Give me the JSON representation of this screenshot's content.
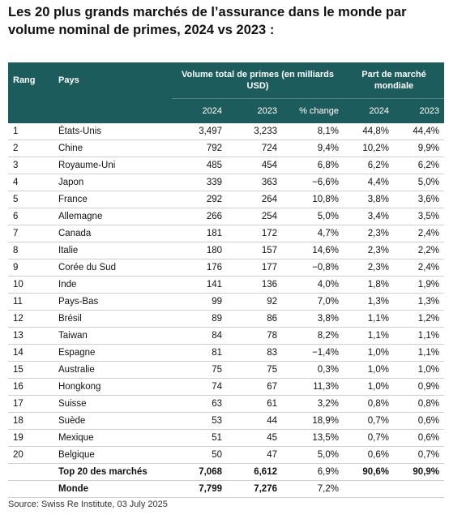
{
  "title": "Les 20 plus grands marchés de l’assurance dans le monde par volume nominal de primes, 2024 vs 2023 :",
  "table": {
    "header": {
      "rank": "Rang",
      "country": "Pays",
      "volume": "Volume total de primes (en milliards USD)",
      "share": "Part de marché mondiale",
      "columns": [
        "2024",
        "2023",
        "% change",
        "2024",
        "2023"
      ]
    },
    "rows": [
      [
        "1",
        "États-Unis",
        "3,497",
        "3,233",
        "8,1%",
        "44,8%",
        "44,4%"
      ],
      [
        "2",
        "Chine",
        "792",
        "724",
        "9,4%",
        "10,2%",
        "9,9%"
      ],
      [
        "3",
        "Royaume-Uni",
        "485",
        "454",
        "6,8%",
        "6,2%",
        "6,2%"
      ],
      [
        "4",
        "Japon",
        "339",
        "363",
        "−6,6%",
        "4,4%",
        "5,0%"
      ],
      [
        "5",
        "France",
        "292",
        "264",
        "10,8%",
        "3,8%",
        "3,6%"
      ],
      [
        "6",
        "Allemagne",
        "266",
        "254",
        "5,0%",
        "3,4%",
        "3,5%"
      ],
      [
        "7",
        "Canada",
        "181",
        "172",
        "4,7%",
        "2,3%",
        "2,4%"
      ],
      [
        "8",
        "Italie",
        "180",
        "157",
        "14,6%",
        "2,3%",
        "2,2%"
      ],
      [
        "9",
        "Corée du Sud",
        "176",
        "177",
        "−0,8%",
        "2,3%",
        "2,4%"
      ],
      [
        "10",
        "Inde",
        "141",
        "136",
        "4,0%",
        "1,8%",
        "1,9%"
      ],
      [
        "11",
        "Pays-Bas",
        "99",
        "92",
        "7,0%",
        "1,3%",
        "1,3%"
      ],
      [
        "12",
        "Brésil",
        "89",
        "86",
        "3,8%",
        "1,1%",
        "1,2%"
      ],
      [
        "13",
        "Taiwan",
        "84",
        "78",
        "8,2%",
        "1,1%",
        "1,1%"
      ],
      [
        "14",
        "Espagne",
        "81",
        "83",
        "−1,4%",
        "1,0%",
        "1,1%"
      ],
      [
        "15",
        "Australie",
        "75",
        "75",
        "0,3%",
        "1,0%",
        "1,0%"
      ],
      [
        "16",
        "Hongkong",
        "74",
        "67",
        "11,3%",
        "1,0%",
        "0,9%"
      ],
      [
        "17",
        "Suisse",
        "63",
        "61",
        "3,2%",
        "0,8%",
        "0,8%"
      ],
      [
        "18",
        "Suède",
        "53",
        "44",
        "18,9%",
        "0,7%",
        "0,6%"
      ],
      [
        "19",
        "Mexique",
        "51",
        "45",
        "13,5%",
        "0,7%",
        "0,6%"
      ],
      [
        "20",
        "Belgique",
        "50",
        "47",
        "5,0%",
        "0,6%",
        "0,7%"
      ]
    ],
    "totals": [
      [
        "Top 20 des marchés",
        "7,068",
        "6,612",
        "6,9%",
        "90,6%",
        "90,9%"
      ],
      [
        "Monde",
        "7,799",
        "7,276",
        "7,2%"
      ]
    ]
  },
  "source": "Source: Swiss Re Institute, 03 July 2025"
}
